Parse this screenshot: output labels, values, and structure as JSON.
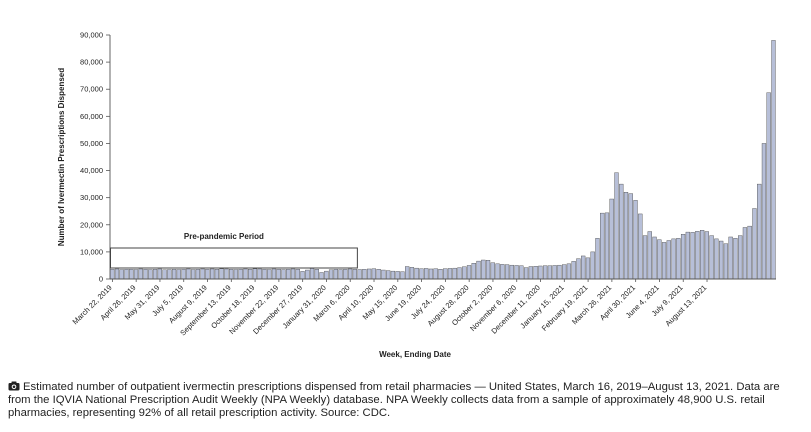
{
  "chart_data": {
    "type": "bar",
    "ylabel": "Number of Ivermectin Prescriptions Dispensed",
    "xlabel": "Week, Ending Date",
    "ylim": [
      0,
      90000
    ],
    "yticks": [
      "0",
      "10,000",
      "20,000",
      "30,000",
      "40,000",
      "50,000",
      "60,000",
      "70,000",
      "80,000",
      "90,000"
    ],
    "grid": false,
    "bar_color": "#b7bfd8",
    "bar_stroke": "#444444",
    "xtick_labels": [
      "March 22, 2019",
      "April 26, 2019",
      "May 31, 2019",
      "July 5, 2019",
      "August 9, 2019",
      "September 13, 2019",
      "October 18, 2019",
      "November 22, 2019",
      "December 27, 2019",
      "January 31, 2020",
      "March 6, 2020",
      "April 10, 2020",
      "May 15, 2020",
      "June 19, 2020",
      "July 24, 2020",
      "August 28, 2020",
      "October 2, 2020",
      "November 6, 2020",
      "December 11, 2020",
      "January 15, 2021",
      "February 19, 2021",
      "March 26, 2021",
      "April 30, 2021",
      "June 4, 2021",
      "July 9, 2021",
      "August 13, 2021"
    ],
    "values": [
      3600,
      3700,
      3500,
      3600,
      3600,
      3500,
      3700,
      3600,
      3500,
      3600,
      3700,
      3400,
      3500,
      3600,
      3500,
      3600,
      3700,
      3500,
      3600,
      3700,
      3600,
      3700,
      3600,
      3800,
      3700,
      3600,
      3500,
      3600,
      3700,
      3600,
      3800,
      3700,
      3600,
      3500,
      3700,
      3600,
      3500,
      3600,
      3700,
      3600,
      2800,
      3300,
      3900,
      3600,
      2400,
      2900,
      3400,
      3600,
      3500,
      3600,
      3700,
      3600,
      3500,
      3600,
      3700,
      3800,
      3600,
      3300,
      3100,
      2900,
      2800,
      2700,
      4600,
      4300,
      4000,
      3800,
      3900,
      3700,
      3800,
      3600,
      3800,
      3900,
      4000,
      4200,
      4500,
      5000,
      5800,
      6600,
      7000,
      6900,
      6000,
      5600,
      5400,
      5300,
      5100,
      5000,
      4900,
      4200,
      4600,
      4700,
      4800,
      4900,
      4900,
      5000,
      5100,
      5300,
      5600,
      6500,
      7500,
      8500,
      7800,
      10000,
      15000,
      24300,
      24400,
      29500,
      39200,
      35000,
      32000,
      31500,
      29000,
      24000,
      16000,
      17500,
      15500,
      14500,
      13500,
      14200,
      14800,
      15000,
      16500,
      17300,
      17200,
      17600,
      18000,
      17500,
      16000,
      14800,
      14000,
      13000,
      15500,
      15000,
      16000,
      19000,
      19500,
      26000,
      35000,
      50000,
      68700,
      88000
    ],
    "annotation": "Pre-pandemic Period"
  },
  "caption": {
    "icon": "camera-icon",
    "text": "Estimated number of outpatient ivermectin prescriptions dispensed from retail pharmacies — United States, March 16, 2019–August 13, 2021. Data are from the IQVIA National Prescription Audit Weekly (NPA Weekly) database. NPA Weekly collects data from a sample of approximately 48,900 U.S. retail pharmacies, representing 92% of all retail prescription activity. Source: CDC."
  }
}
